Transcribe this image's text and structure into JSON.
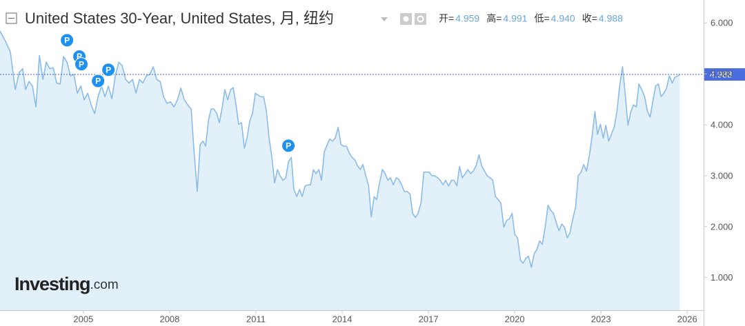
{
  "chart_data": {
    "type": "area",
    "title": "United States 30-Year, United States, 月, 纽约",
    "ohlc": [
      {
        "label": "开=",
        "value": "4.959"
      },
      {
        "label": "高=",
        "value": "4.991"
      },
      {
        "label": "低=",
        "value": "4.940"
      },
      {
        "label": "收=",
        "value": "4.988"
      }
    ],
    "logo_main": "Investing",
    "logo_suffix": ".com",
    "color": "#8bbbe8",
    "fill": "#e2f0fa",
    "xlim": [
      2002.1,
      2026.57
    ],
    "ylim": [
      0.36,
      6.45
    ],
    "xticks": [
      2005,
      2008,
      2011,
      2014,
      2017,
      2020,
      2023,
      2026
    ],
    "yticks": [
      {
        "value": 1,
        "label": "1.000"
      },
      {
        "value": 2,
        "label": "2.000"
      },
      {
        "value": 3,
        "label": "3.000"
      },
      {
        "value": 4,
        "label": "4.000"
      },
      {
        "value": 5,
        "label": "5.000"
      },
      {
        "value": 6,
        "label": "6.000"
      }
    ],
    "last_price": {
      "value": 4.988,
      "label": "4.988"
    },
    "annotations": [
      {
        "text": "P",
        "x": 2004.43,
        "y": 5.66
      },
      {
        "text": "P",
        "x": 2004.86,
        "y": 5.34
      },
      {
        "text": "P",
        "x": 2004.93,
        "y": 5.19
      },
      {
        "text": "P",
        "x": 2005.51,
        "y": 4.86
      },
      {
        "text": "P",
        "x": 2005.87,
        "y": 5.08
      },
      {
        "text": "P",
        "x": 2012.13,
        "y": 3.59
      }
    ],
    "x": [
      2002.1,
      2002.29,
      2002.46,
      2002.63,
      2002.77,
      2002.89,
      2002.99,
      2003.11,
      2003.23,
      2003.35,
      2003.47,
      2003.59,
      2003.71,
      2003.83,
      2003.95,
      2004.07,
      2004.19,
      2004.31,
      2004.43,
      2004.55,
      2004.67,
      2004.79,
      2004.91,
      2005.03,
      2005.15,
      2005.27,
      2005.39,
      2005.51,
      2005.63,
      2005.75,
      2005.87,
      2005.99,
      2006.11,
      2006.23,
      2006.35,
      2006.47,
      2006.59,
      2006.71,
      2006.83,
      2006.95,
      2007.07,
      2007.19,
      2007.31,
      2007.43,
      2007.55,
      2007.67,
      2007.79,
      2007.91,
      2008.03,
      2008.15,
      2008.27,
      2008.39,
      2008.51,
      2008.63,
      2008.75,
      2008.84,
      2008.96,
      2009.06,
      2009.16,
      2009.25,
      2009.35,
      2009.44,
      2009.54,
      2009.64,
      2009.73,
      2009.83,
      2009.92,
      2010.02,
      2010.12,
      2010.21,
      2010.31,
      2010.4,
      2010.5,
      2010.6,
      2010.69,
      2010.79,
      2010.88,
      2010.98,
      2011.08,
      2011.17,
      2011.27,
      2011.36,
      2011.46,
      2011.56,
      2011.65,
      2011.75,
      2011.84,
      2011.94,
      2012.04,
      2012.13,
      2012.23,
      2012.32,
      2012.42,
      2012.52,
      2012.61,
      2012.71,
      2012.8,
      2012.9,
      2013.0,
      2013.09,
      2013.19,
      2013.28,
      2013.38,
      2013.48,
      2013.57,
      2013.67,
      2013.76,
      2013.86,
      2013.96,
      2014.05,
      2014.15,
      2014.24,
      2014.34,
      2014.44,
      2014.53,
      2014.63,
      2014.72,
      2014.82,
      2014.92,
      2015.01,
      2015.11,
      2015.2,
      2015.3,
      2015.4,
      2015.49,
      2015.59,
      2015.68,
      2015.78,
      2015.88,
      2015.97,
      2016.07,
      2016.16,
      2016.26,
      2016.36,
      2016.45,
      2016.55,
      2016.64,
      2016.74,
      2016.84,
      2016.93,
      2017.03,
      2017.12,
      2017.22,
      2017.32,
      2017.41,
      2017.51,
      2017.6,
      2017.7,
      2017.8,
      2017.89,
      2017.99,
      2018.08,
      2018.18,
      2018.28,
      2018.37,
      2018.47,
      2018.56,
      2018.66,
      2018.76,
      2018.85,
      2018.95,
      2019.04,
      2019.14,
      2019.24,
      2019.33,
      2019.43,
      2019.52,
      2019.62,
      2019.72,
      2019.81,
      2019.91,
      2020.0,
      2020.1,
      2020.2,
      2020.29,
      2020.39,
      2020.48,
      2020.58,
      2020.68,
      2020.77,
      2020.87,
      2020.96,
      2021.06,
      2021.16,
      2021.25,
      2021.35,
      2021.44,
      2021.54,
      2021.64,
      2021.73,
      2021.83,
      2021.92,
      2022.02,
      2022.12,
      2022.21,
      2022.31,
      2022.4,
      2022.5,
      2022.6,
      2022.69,
      2022.79,
      2022.88,
      2022.98,
      2023.08,
      2023.17,
      2023.27,
      2023.36,
      2023.46,
      2023.56,
      2023.65,
      2023.75,
      2023.84,
      2023.94,
      2024.04,
      2024.13,
      2024.23,
      2024.32,
      2024.42,
      2024.52,
      2024.61,
      2024.71,
      2024.8,
      2024.9,
      2025.0,
      2025.09,
      2025.19,
      2025.28,
      2025.38,
      2025.48,
      2025.57,
      2025.67,
      2025.74
    ],
    "values": [
      5.84,
      5.64,
      5.43,
      4.69,
      5.03,
      5.1,
      4.69,
      4.85,
      4.76,
      4.35,
      5.36,
      4.89,
      5.23,
      5.1,
      5.12,
      4.82,
      4.8,
      5.34,
      5.23,
      4.96,
      4.99,
      4.62,
      4.76,
      4.49,
      4.62,
      4.39,
      4.22,
      4.55,
      4.76,
      4.55,
      4.76,
      4.51,
      4.96,
      5.23,
      5.16,
      4.89,
      4.82,
      4.89,
      4.62,
      4.89,
      4.82,
      4.96,
      4.99,
      5.14,
      4.89,
      4.85,
      4.55,
      4.42,
      4.45,
      4.35,
      4.49,
      4.72,
      4.49,
      4.39,
      4.31,
      3.54,
      2.69,
      3.61,
      3.68,
      3.58,
      4.08,
      4.31,
      4.31,
      4.22,
      4.04,
      4.35,
      4.69,
      4.49,
      4.69,
      4.73,
      4.39,
      4.01,
      4.04,
      3.54,
      3.74,
      4.08,
      4.22,
      4.62,
      4.58,
      4.55,
      4.55,
      4.28,
      3.74,
      3.34,
      2.86,
      3.12,
      3.0,
      2.91,
      2.96,
      3.27,
      3.36,
      2.73,
      2.59,
      2.73,
      2.59,
      2.8,
      2.82,
      2.82,
      3.12,
      3.04,
      3.12,
      2.91,
      3.47,
      3.61,
      3.72,
      3.68,
      3.74,
      3.95,
      3.61,
      3.58,
      3.58,
      3.45,
      3.36,
      3.31,
      3.2,
      3.12,
      3.22,
      3.0,
      2.8,
      2.19,
      2.59,
      2.53,
      2.86,
      3.12,
      3.05,
      2.91,
      2.96,
      2.82,
      2.96,
      2.93,
      2.82,
      2.69,
      2.69,
      2.64,
      2.26,
      2.18,
      2.26,
      2.46,
      3.07,
      3.07,
      3.07,
      3.0,
      3.0,
      2.96,
      2.91,
      2.82,
      2.91,
      2.8,
      2.91,
      2.91,
      2.8,
      3.18,
      2.96,
      3.04,
      3.12,
      3.04,
      3.09,
      3.2,
      3.41,
      3.2,
      3.09,
      3.0,
      2.96,
      2.91,
      2.59,
      2.53,
      2.46,
      1.99,
      2.12,
      2.15,
      2.26,
      1.85,
      1.78,
      1.34,
      1.28,
      1.38,
      1.42,
      1.2,
      1.47,
      1.55,
      1.72,
      1.65,
      1.99,
      2.42,
      2.32,
      2.26,
      2.09,
      1.92,
      2.05,
      1.99,
      1.78,
      1.88,
      2.15,
      2.39,
      3.0,
      3.07,
      3.22,
      3.09,
      3.41,
      3.77,
      4.26,
      3.81,
      4.01,
      3.74,
      3.99,
      3.68,
      3.81,
      3.95,
      4.28,
      4.76,
      5.14,
      4.62,
      3.99,
      4.26,
      4.39,
      4.35,
      4.8,
      4.69,
      4.55,
      4.28,
      4.15,
      4.45,
      4.76,
      4.8,
      4.55,
      4.62,
      4.72,
      4.96,
      4.82,
      4.93,
      4.96,
      4.988
    ]
  }
}
